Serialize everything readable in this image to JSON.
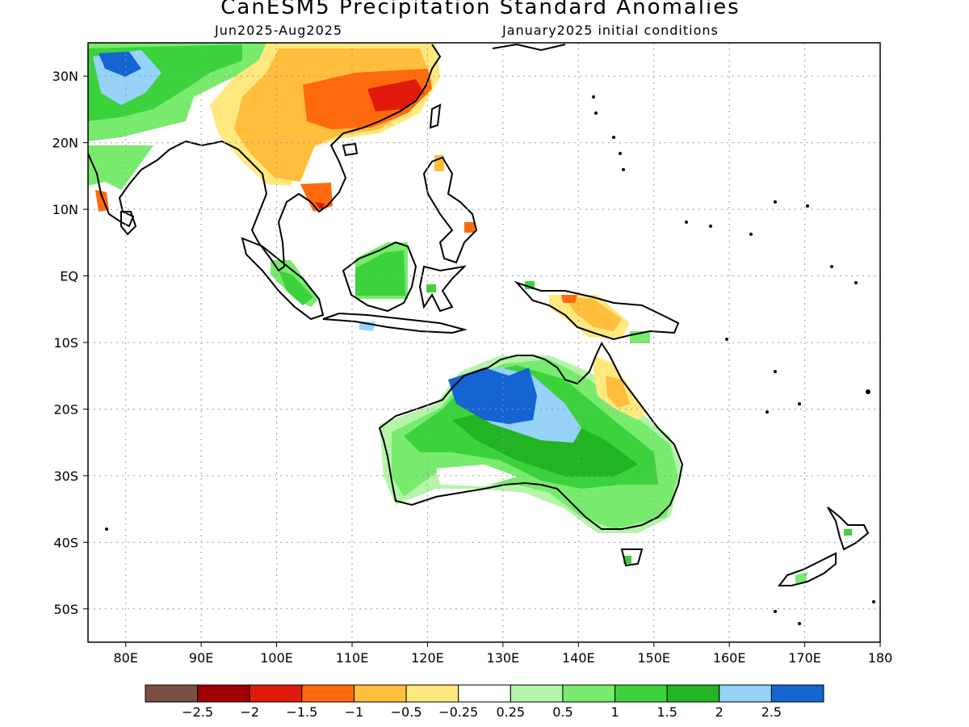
{
  "title": "CanESM5 Precipitation Standard Anomalies",
  "subtitle_left": "Jun2025-Aug2025",
  "subtitle_right": "January2025 initial conditions",
  "map": {
    "lon_range": [
      75,
      180
    ],
    "lat_range": [
      -55,
      35
    ],
    "lat_labels": [
      {
        "value": 30,
        "label": "30N"
      },
      {
        "value": 20,
        "label": "20N"
      },
      {
        "value": 10,
        "label": "10N"
      },
      {
        "value": 0,
        "label": "EQ"
      },
      {
        "value": -10,
        "label": "10S"
      },
      {
        "value": -20,
        "label": "20S"
      },
      {
        "value": -30,
        "label": "30S"
      },
      {
        "value": -40,
        "label": "40S"
      },
      {
        "value": -50,
        "label": "50S"
      }
    ],
    "lon_labels": [
      {
        "value": 80,
        "label": "80E"
      },
      {
        "value": 90,
        "label": "90E"
      },
      {
        "value": 100,
        "label": "100E"
      },
      {
        "value": 110,
        "label": "110E"
      },
      {
        "value": 120,
        "label": "120E"
      },
      {
        "value": 130,
        "label": "130E"
      },
      {
        "value": 140,
        "label": "140E"
      },
      {
        "value": 150,
        "label": "150E"
      },
      {
        "value": 160,
        "label": "160E"
      },
      {
        "value": 170,
        "label": "170E"
      },
      {
        "value": 180,
        "label": "180"
      }
    ],
    "grid": true
  },
  "colorbar": {
    "colors": [
      "#7a5044",
      "#a00000",
      "#e01a0a",
      "#ff6a0e",
      "#ffbe3c",
      "#ffe97e",
      "#ffffff",
      "#b4f5aa",
      "#78eb6e",
      "#3cd23c",
      "#22b422",
      "#96d2fa",
      "#1464d2"
    ],
    "labels": [
      "-2.5",
      "-2",
      "-1.5",
      "-1",
      "-0.5",
      "-0.25",
      "0.25",
      "0.5",
      "1",
      "1.5",
      "2",
      "2.5"
    ]
  },
  "anomaly_regions": [
    {
      "name": "tibetan-plateau-wet",
      "category": "+1 to +1.5",
      "color": "#3cd23c"
    },
    {
      "name": "himalaya-very-wet",
      "category": "+2.5",
      "color": "#1464d2"
    },
    {
      "name": "south-china-dry",
      "category": "-1 to -1.5",
      "color": "#ff6a0e"
    },
    {
      "name": "borneo-wet",
      "category": "+1 to +1.5",
      "color": "#3cd23c"
    },
    {
      "name": "new-guinea-dry",
      "category": "-0.5 to -1",
      "color": "#ffbe3c"
    },
    {
      "name": "northern-australia-very-wet",
      "category": "+2.5",
      "color": "#1464d2"
    },
    {
      "name": "central-australia-wet",
      "category": "+1.5 to +2",
      "color": "#22b422"
    },
    {
      "name": "queensland-coast-dry",
      "category": "-0.25 to -0.5",
      "color": "#ffe97e"
    }
  ]
}
